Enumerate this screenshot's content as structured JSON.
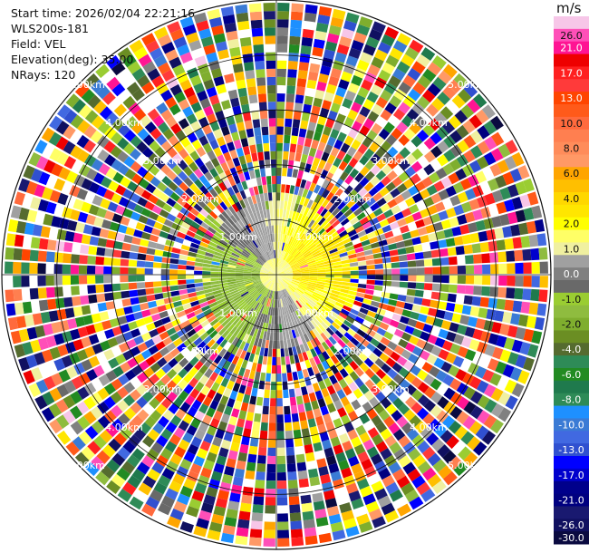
{
  "header": {
    "start_time": "Start time: 2026/02/04 22:21:16",
    "station": "WLS200s-181",
    "field": "Field: VEL",
    "elevation": "Elevation(deg): 35.00",
    "nrays": "NRays: 120"
  },
  "colorbar": {
    "unit": "m/s",
    "levels": [
      {
        "label": "26.0",
        "color": "#f7c6e8"
      },
      {
        "label": "26.0",
        "color": "#ff4fb8"
      },
      {
        "label": "21.0",
        "color": "#ff1493"
      },
      {
        "label": "",
        "color": "#ee0000"
      },
      {
        "label": "17.0",
        "color": "#ff2020"
      },
      {
        "label": "",
        "color": "#ff3a3a"
      },
      {
        "label": "13.0",
        "color": "#ff4500"
      },
      {
        "label": "",
        "color": "#ff5a1a"
      },
      {
        "label": "10.0",
        "color": "#ff6a3d"
      },
      {
        "label": "",
        "color": "#ff7f50"
      },
      {
        "label": "8.0",
        "color": "#ff8c5a"
      },
      {
        "label": "",
        "color": "#ff9966"
      },
      {
        "label": "6.0",
        "color": "#ffa500"
      },
      {
        "label": "",
        "color": "#ffbf00"
      },
      {
        "label": "4.0",
        "color": "#ffd700"
      },
      {
        "label": "",
        "color": "#ffe600"
      },
      {
        "label": "2.0",
        "color": "#ffff00"
      },
      {
        "label": "",
        "color": "#ffff66"
      },
      {
        "label": "1.0",
        "color": "#f0f0a0"
      },
      {
        "label": "",
        "color": "#a0a0a0"
      },
      {
        "label": "0.0",
        "color": "#808080"
      },
      {
        "label": "",
        "color": "#696969"
      },
      {
        "label": "-1.0",
        "color": "#9acd32"
      },
      {
        "label": "",
        "color": "#8fbc3f"
      },
      {
        "label": "-2.0",
        "color": "#7fae2e"
      },
      {
        "label": "",
        "color": "#6b8e23"
      },
      {
        "label": "-4.0",
        "color": "#556b2f"
      },
      {
        "label": "",
        "color": "#2e8b57"
      },
      {
        "label": "-6.0",
        "color": "#228b22"
      },
      {
        "label": "",
        "color": "#1f7a4d"
      },
      {
        "label": "-8.0",
        "color": "#2e8b57"
      },
      {
        "label": "",
        "color": "#1e90ff"
      },
      {
        "label": "-10.0",
        "color": "#3a7bd5"
      },
      {
        "label": "",
        "color": "#4169e1"
      },
      {
        "label": "-13.0",
        "color": "#3050d0"
      },
      {
        "label": "",
        "color": "#0000ff"
      },
      {
        "label": "-17.0",
        "color": "#0000cd"
      },
      {
        "label": "",
        "color": "#00008b"
      },
      {
        "label": "-21.0",
        "color": "#000080"
      },
      {
        "label": "",
        "color": "#191970"
      },
      {
        "label": "-26.0",
        "color": "#101060"
      },
      {
        "label": "-30.0",
        "color": "#0a0a40"
      }
    ]
  },
  "chart_data": {
    "type": "heatmap",
    "projection": "polar PPI",
    "field": "VEL",
    "units": "m/s",
    "vmin": -30.0,
    "vmax": 26.0,
    "n_rays": 120,
    "range_max_km": 5.0,
    "range_gate_km": 0.03,
    "range_ring_labels": [
      "1.00km",
      "2.00km",
      "3.00km",
      "4.00km",
      "5.00km"
    ],
    "range_rings_km": [
      1,
      2,
      3,
      4,
      5
    ],
    "tick_labels": [
      "26.0",
      "21.0",
      "17.0",
      "13.0",
      "10.0",
      "8.0",
      "6.0",
      "4.0",
      "2.0",
      "1.0",
      "0.0",
      "-1.0",
      "-2.0",
      "-4.0",
      "-6.0",
      "-8.0",
      "-10.0",
      "-13.0",
      "-17.0",
      "-21.0",
      "-26.0",
      "-30.0"
    ],
    "description_of_field": {
      "inner_region_km": [
        0,
        1.4
      ],
      "inner_pattern": "coherent: positive velocities (~1 to 6 m/s, yellow/orange) toward north-east and south-east, negative velocities (~-1 to -8 m/s, green) toward west and south-west, near-zero (gray) band through center",
      "outer_region_km": [
        1.4,
        5.0
      ],
      "outer_pattern": "noise: random velocities across full color scale"
    }
  }
}
